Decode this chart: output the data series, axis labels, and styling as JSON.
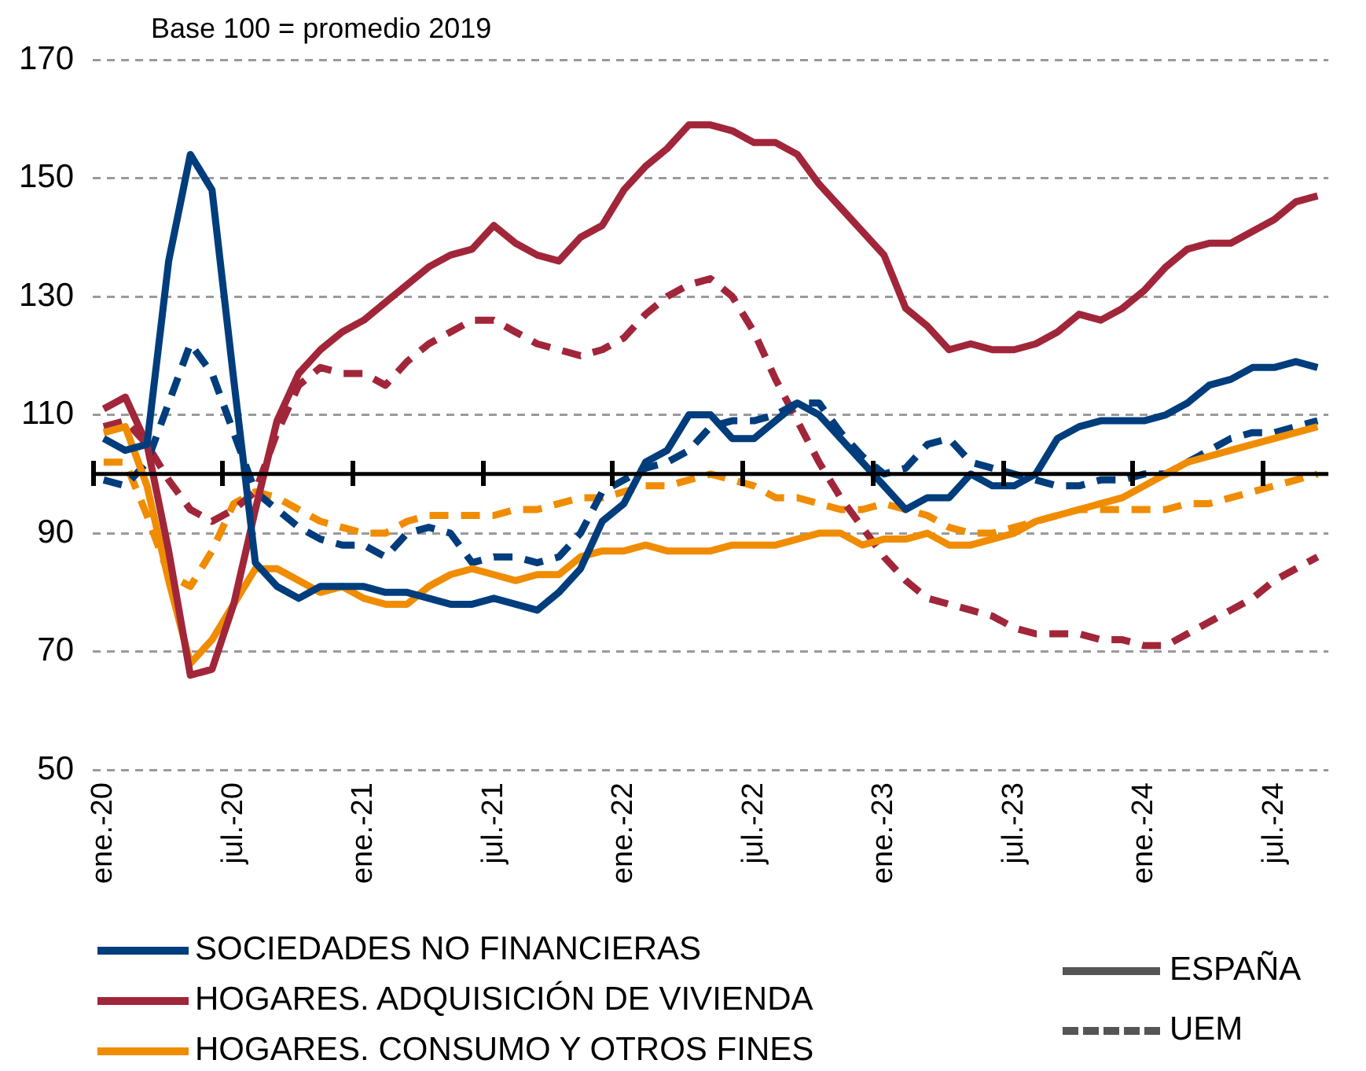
{
  "chart_data": {
    "type": "line",
    "annotations": [
      "Base 100 = promedio 2019",
      "ESPAÑA",
      "UEM"
    ],
    "categories": [
      "ene.-20",
      null,
      null,
      null,
      null,
      null,
      "jul.-20",
      null,
      null,
      null,
      null,
      null,
      "ene.-21",
      null,
      null,
      null,
      null,
      null,
      "jul.-21",
      null,
      null,
      null,
      null,
      null,
      "ene.-22",
      null,
      null,
      null,
      null,
      null,
      "jul.-22",
      null,
      null,
      null,
      null,
      null,
      "ene.-23",
      null,
      null,
      null,
      null,
      null,
      "jul.-23",
      null,
      null,
      null,
      null,
      null,
      "ene.-24",
      null,
      null,
      null,
      null,
      null,
      "jul.-24",
      null,
      null
    ],
    "series": [
      {
        "name": "SOCIEDADES NO FINANCIERAS",
        "color": "#003d7c",
        "line_style": "solid",
        "values": [
          106,
          104,
          105,
          136,
          154,
          148,
          116,
          85,
          81,
          79,
          81,
          81,
          81,
          80,
          80,
          79,
          78,
          78,
          79,
          78,
          77,
          80,
          84,
          92,
          95,
          102,
          104,
          110,
          110,
          106,
          106,
          109,
          112,
          110,
          106,
          102,
          98,
          94,
          96,
          96,
          100,
          98,
          98,
          100,
          106,
          108,
          109,
          109,
          109,
          110,
          112,
          115,
          116,
          118,
          118,
          119,
          118
        ]
      },
      {
        "name": "HOGARES. ADQUISICIÓN DE VIVIENDA",
        "color": "#a1263a",
        "line_style": "solid",
        "values": [
          111,
          113,
          105,
          87,
          66,
          67,
          78,
          94,
          109,
          117,
          121,
          124,
          126,
          129,
          132,
          135,
          137,
          138,
          142,
          139,
          137,
          136,
          140,
          142,
          148,
          152,
          155,
          159,
          159,
          158,
          156,
          156,
          154,
          149,
          145,
          141,
          137,
          128,
          125,
          121,
          122,
          121,
          121,
          122,
          124,
          127,
          126,
          128,
          131,
          135,
          138,
          139,
          139,
          141,
          143,
          146,
          147
        ]
      },
      {
        "name": "HOGARES. CONSUMO Y OTROS FINES",
        "color": "#f08c00",
        "line_style": "solid",
        "values": [
          107,
          108,
          98,
          82,
          68,
          72,
          78,
          84,
          84,
          82,
          80,
          81,
          79,
          78,
          78,
          81,
          83,
          84,
          83,
          82,
          83,
          83,
          86,
          87,
          87,
          88,
          87,
          87,
          87,
          88,
          88,
          88,
          89,
          90,
          90,
          88,
          89,
          89,
          90,
          88,
          88,
          89,
          90,
          92,
          93,
          94,
          95,
          96,
          98,
          100,
          102,
          103,
          104,
          105,
          106,
          107,
          108
        ]
      },
      {
        "color": "#003d7c",
        "line_style": "dashed",
        "values": [
          99,
          98,
          102,
          112,
          122,
          117,
          107,
          97,
          94,
          91,
          89,
          88,
          88,
          86,
          90,
          91,
          90,
          85,
          86,
          86,
          85,
          86,
          90,
          97,
          99,
          101,
          102,
          104,
          108,
          109,
          109,
          110,
          112,
          112,
          107,
          103,
          100,
          101,
          105,
          106,
          102,
          101,
          100,
          99,
          98,
          98,
          99,
          99,
          100,
          100,
          102,
          104,
          106,
          107,
          107,
          108,
          109
        ]
      },
      {
        "color": "#a1263a",
        "line_style": "dashed",
        "values": [
          108,
          109,
          105,
          99,
          94,
          92,
          94,
          97,
          107,
          115,
          118,
          117,
          117,
          115,
          119,
          122,
          124,
          126,
          126,
          124,
          122,
          121,
          120,
          121,
          123,
          127,
          130,
          132,
          133,
          130,
          124,
          116,
          109,
          102,
          96,
          91,
          86,
          82,
          79,
          78,
          77,
          76,
          74,
          73,
          73,
          73,
          72,
          72,
          71,
          71,
          73,
          75,
          77,
          79,
          82,
          84,
          86
        ]
      },
      {
        "color": "#f08c00",
        "line_style": "dashed",
        "values": [
          102,
          102,
          93,
          83,
          81,
          87,
          95,
          97,
          96,
          94,
          92,
          91,
          90,
          90,
          92,
          93,
          93,
          93,
          93,
          94,
          94,
          95,
          96,
          96,
          97,
          98,
          98,
          99,
          100,
          99,
          98,
          96,
          96,
          95,
          94,
          94,
          95,
          94,
          93,
          91,
          90,
          90,
          91,
          92,
          93,
          94,
          94,
          94,
          94,
          94,
          95,
          95,
          96,
          97,
          98,
          99,
          100
        ]
      }
    ],
    "ylim": [
      50,
      170
    ],
    "yticks": [
      50,
      70,
      90,
      110,
      130,
      150,
      170
    ],
    "grid": "y",
    "legend": "bottom",
    "ref_lines": [
      {
        "axis": "y",
        "value": 100,
        "color": "#000000"
      }
    ]
  }
}
